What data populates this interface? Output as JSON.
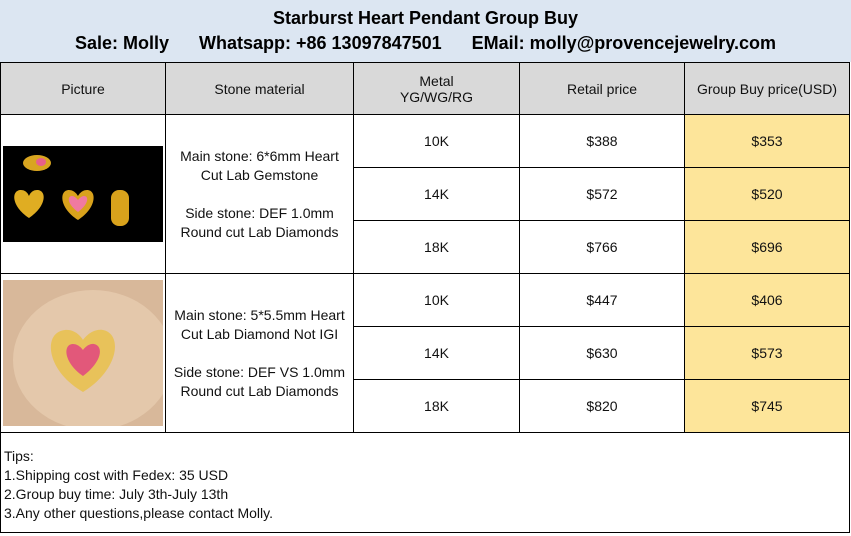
{
  "header": {
    "title": "Starburst Heart Pendant Group Buy",
    "contact": [
      "Sale: Molly",
      "Whatsapp: +86 13097847501",
      "EMail: molly@provencejewelry.com"
    ]
  },
  "table": {
    "columns": [
      "Picture",
      "Stone material",
      "Metal\nYG/WG/RG",
      "Retail price",
      "Group Buy price(USD)"
    ],
    "products": [
      {
        "stone": [
          "Main stone: 6*6mm Heart Cut Lab Gemstone",
          "Side stone: DEF 1.0mm Round cut Lab Diamonds"
        ],
        "rows": [
          [
            "10K",
            "$388",
            "$353"
          ],
          [
            "14K",
            "$572",
            "$520"
          ],
          [
            "18K",
            "$766",
            "$696"
          ]
        ]
      },
      {
        "stone": [
          "Main stone: 5*5.5mm Heart Cut Lab Diamond Not IGI",
          "Side stone: DEF VS 1.0mm Round cut Lab Diamonds"
        ],
        "rows": [
          [
            "10K",
            "$447",
            "$406"
          ],
          [
            "14K",
            "$630",
            "$573"
          ],
          [
            "18K",
            "$820",
            "$745"
          ]
        ]
      }
    ]
  },
  "tips": {
    "title": "Tips:",
    "items": [
      "1.Shipping cost with Fedex: 35 USD",
      "2.Group buy time: July 3th-July 13th",
      "3.Any other questions,please contact Molly."
    ]
  }
}
